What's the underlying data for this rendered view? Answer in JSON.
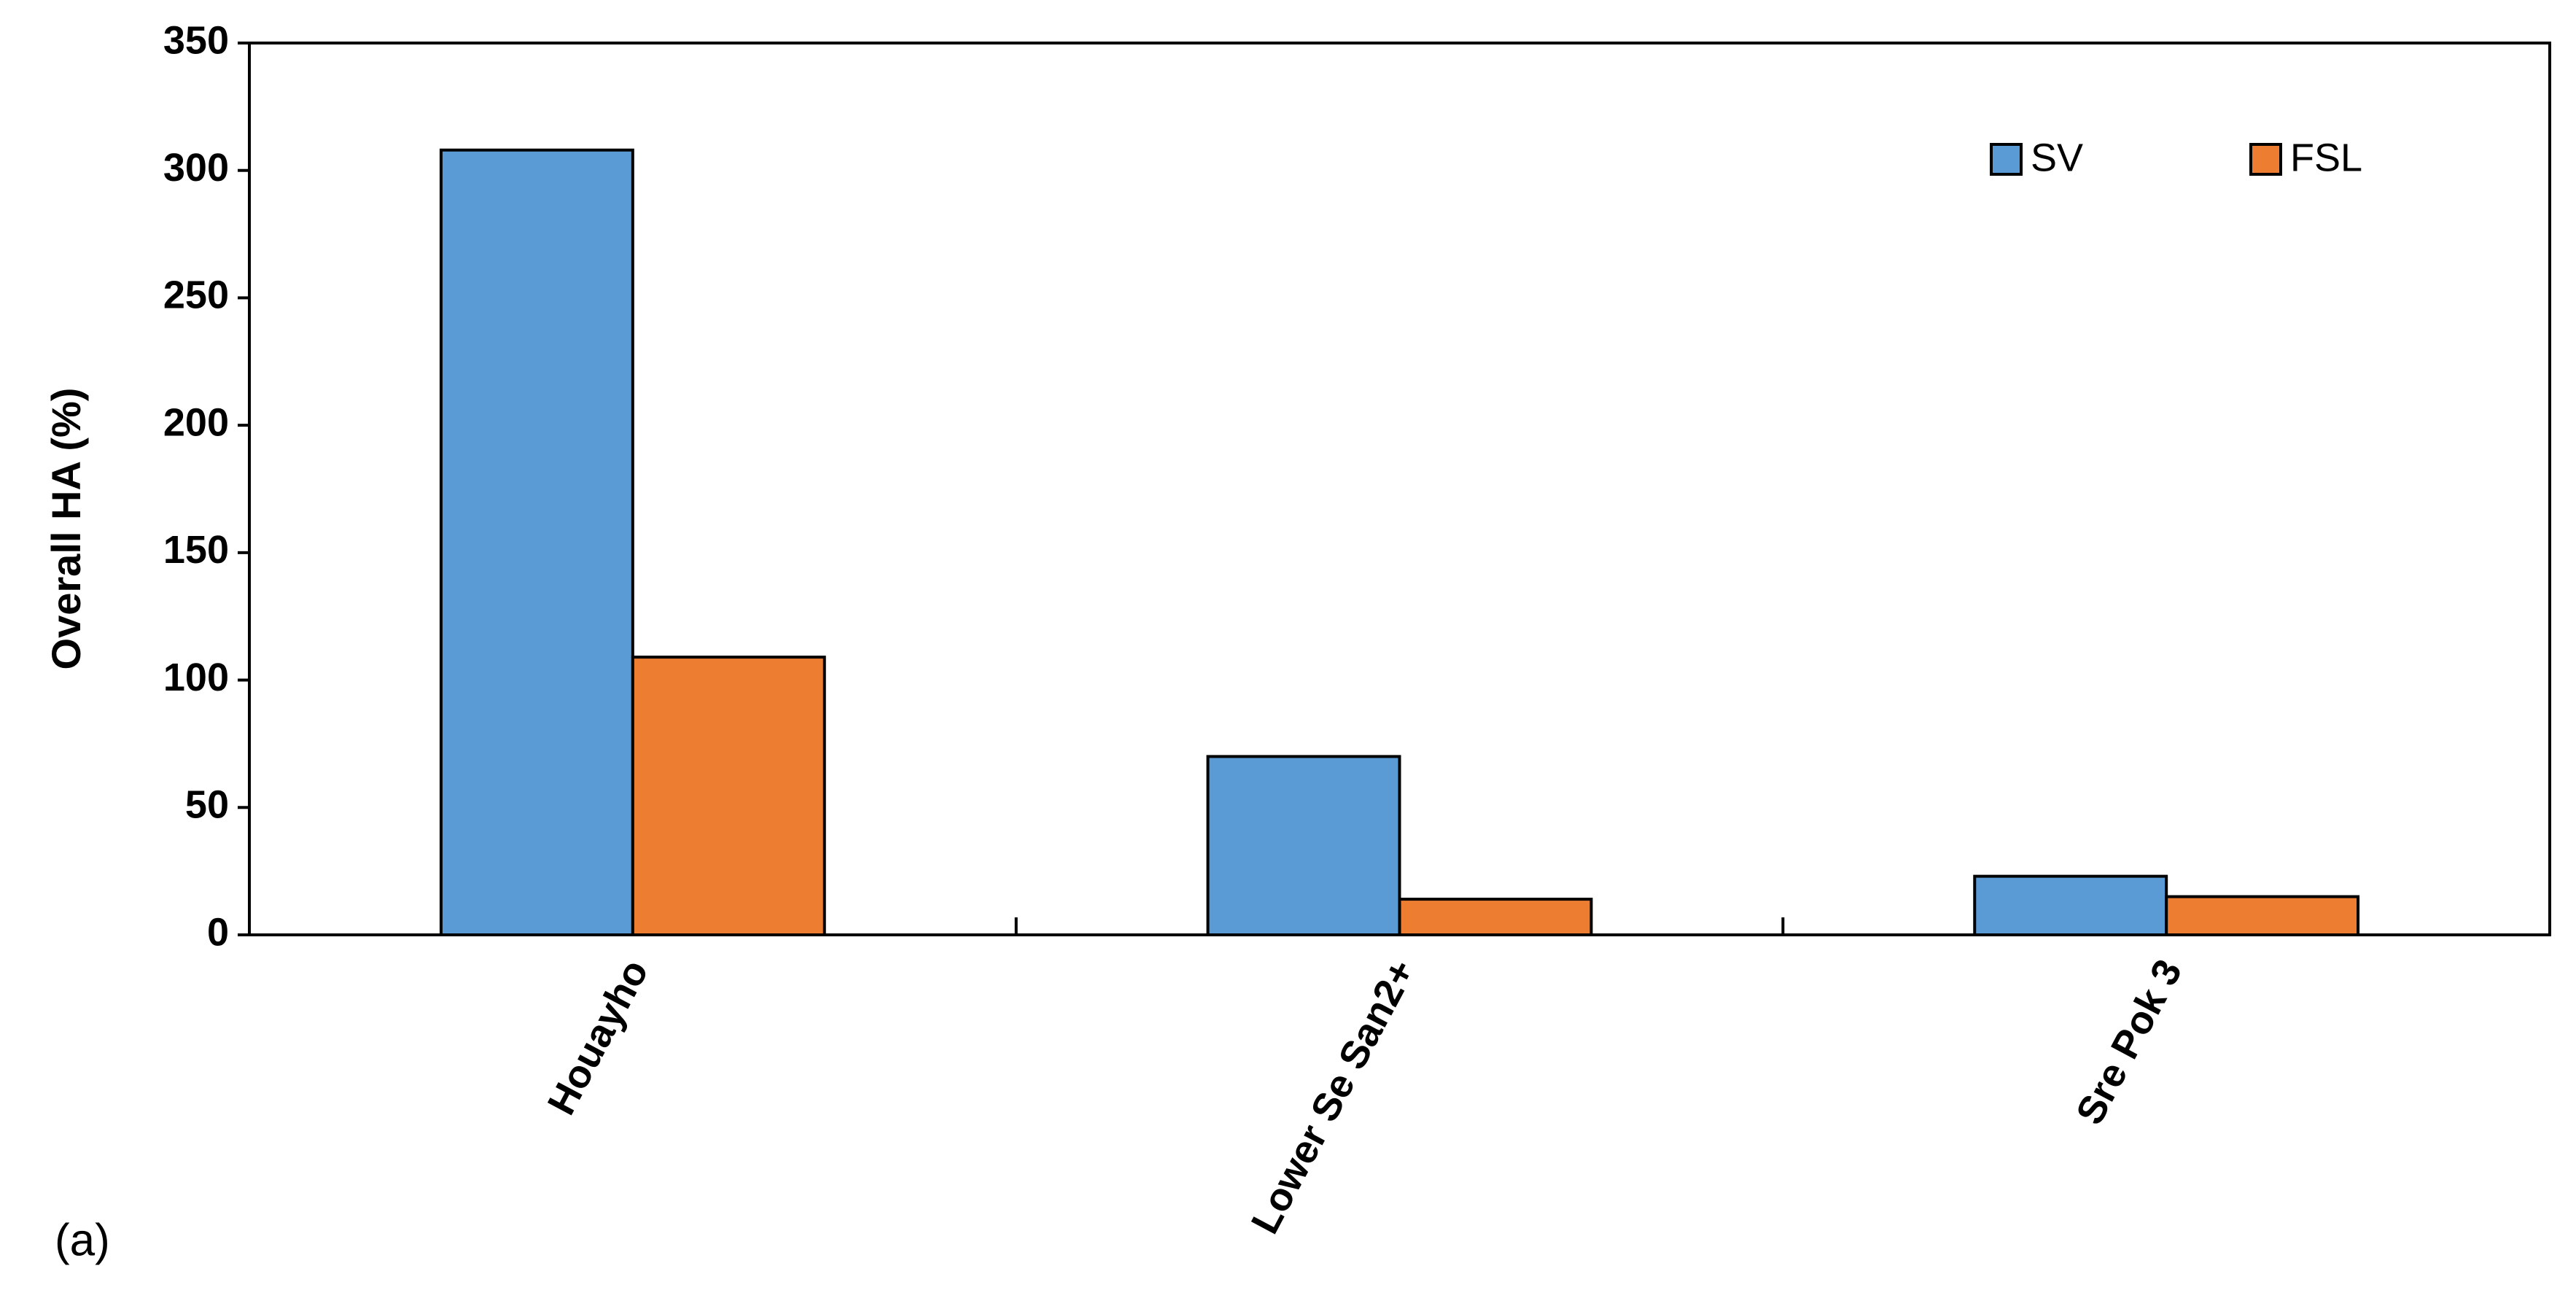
{
  "chart_data": {
    "type": "bar",
    "panel_label": "(a)",
    "y_label": "Overall HA (%)",
    "categories": [
      "Houayho",
      "Lower Se San2+",
      "Sre Pok 3"
    ],
    "series": [
      {
        "name": "SV",
        "color": "#5b9bd5",
        "values": [
          308,
          70,
          23
        ]
      },
      {
        "name": "FSL",
        "color": "#ed7d31",
        "values": [
          109,
          14,
          15
        ]
      }
    ],
    "ylim": [
      0,
      350
    ],
    "yticks": [
      0,
      50,
      100,
      150,
      200,
      250,
      300,
      350
    ],
    "grid": false,
    "legend": "top-right"
  }
}
